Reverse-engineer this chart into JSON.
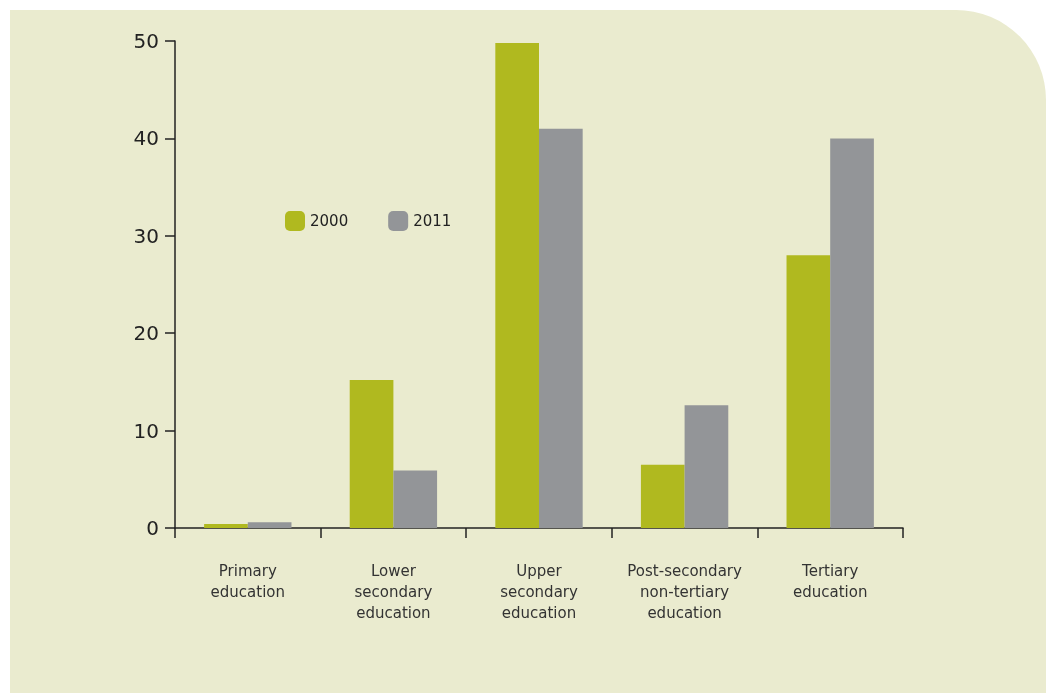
{
  "chart_data": {
    "type": "bar",
    "categories": [
      "Primary\neducation",
      "Lower\nsecondary\neducation",
      "Upper\nsecondary\neducation",
      "Post-secondary\nnon-tertiary\neducation",
      "Tertiary\neducation"
    ],
    "series": [
      {
        "name": "2000",
        "color": "#b0b91f",
        "values": [
          0.4,
          15.2,
          49.8,
          6.5,
          28.0
        ]
      },
      {
        "name": "2011",
        "color": "#939598",
        "values": [
          0.6,
          5.9,
          41.0,
          12.6,
          40.0
        ]
      }
    ],
    "ylim": [
      0,
      50
    ],
    "yticks": [
      0,
      10,
      20,
      30,
      40,
      50
    ],
    "grid": false,
    "legend": "top left"
  }
}
